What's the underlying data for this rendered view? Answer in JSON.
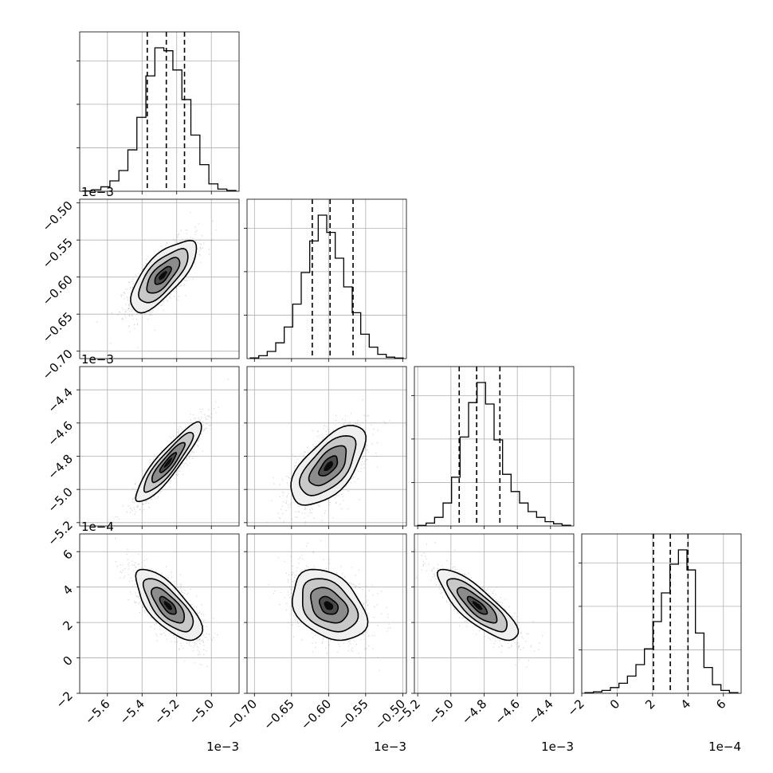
{
  "chart_data": {
    "type": "corner",
    "parameters": [
      {
        "index": 0,
        "limits": [
          -5.76,
          -4.84
        ],
        "ticks": [
          -5.6,
          -5.4,
          -5.2,
          -5.0
        ],
        "tick_labels": [
          "−5.6",
          "−5.4",
          "−5.2",
          "−5.0"
        ],
        "offset": "1e−3",
        "quantiles": [
          -5.37,
          -5.26,
          -5.155
        ],
        "histogram": [
          0.002,
          0.01,
          0.03,
          0.07,
          0.14,
          0.28,
          0.5,
          0.78,
          0.97,
          0.95,
          0.82,
          0.62,
          0.38,
          0.18,
          0.05,
          0.015,
          0.005
        ]
      },
      {
        "index": 1,
        "limits": [
          -0.71,
          -0.495
        ],
        "ticks": [
          -0.7,
          -0.65,
          -0.6,
          -0.55,
          -0.5
        ],
        "tick_labels": [
          "−0.70",
          "−0.65",
          "−0.60",
          "−0.55",
          "−0.50"
        ],
        "offset": "1e−3",
        "quantiles": [
          -0.622,
          -0.598,
          -0.567
        ],
        "histogram": [
          0.005,
          0.02,
          0.05,
          0.11,
          0.22,
          0.38,
          0.6,
          0.82,
          1.0,
          0.88,
          0.7,
          0.5,
          0.32,
          0.17,
          0.08,
          0.03,
          0.01,
          0.004
        ]
      },
      {
        "index": 2,
        "limits": [
          -5.22,
          -4.26
        ],
        "ticks": [
          -5.2,
          -5.0,
          -4.8,
          -4.6,
          -4.4
        ],
        "tick_labels": [
          "−5.2",
          "−5.0",
          "−4.8",
          "−4.6",
          "−4.4"
        ],
        "offset": "1e−3",
        "quantiles": [
          -4.95,
          -4.845,
          -4.705
        ],
        "histogram": [
          0.004,
          0.02,
          0.06,
          0.16,
          0.34,
          0.62,
          0.86,
          1.0,
          0.85,
          0.6,
          0.36,
          0.24,
          0.16,
          0.1,
          0.06,
          0.03,
          0.015,
          0.005
        ]
      },
      {
        "index": 3,
        "limits": [
          -2.0,
          7.0
        ],
        "ticks": [
          -2,
          0,
          2,
          4,
          6
        ],
        "tick_labels": [
          "−2",
          "0",
          "2",
          "4",
          "6"
        ],
        "offset": "1e−4",
        "quantiles": [
          2.05,
          3.0,
          4.0
        ],
        "histogram": [
          0.005,
          0.01,
          0.02,
          0.04,
          0.07,
          0.12,
          0.2,
          0.31,
          0.5,
          0.7,
          0.9,
          1.0,
          0.86,
          0.42,
          0.18,
          0.06,
          0.02,
          0.005
        ]
      }
    ],
    "pairs": [
      {
        "col": 0,
        "row": 1,
        "mean": [
          -5.28,
          -0.598
        ],
        "sd": [
          0.095,
          0.024
        ],
        "rho": 0.72
      },
      {
        "col": 0,
        "row": 2,
        "mean": [
          -5.25,
          -4.84
        ],
        "sd": [
          0.095,
          0.12
        ],
        "rho": 0.9
      },
      {
        "col": 1,
        "row": 2,
        "mean": [
          -0.6,
          -4.86
        ],
        "sd": [
          0.025,
          0.12
        ],
        "rho": 0.62
      },
      {
        "col": 0,
        "row": 3,
        "mean": [
          -5.25,
          2.95
        ],
        "sd": [
          0.095,
          1.0
        ],
        "rho": -0.72
      },
      {
        "col": 1,
        "row": 3,
        "mean": [
          -0.6,
          2.95
        ],
        "sd": [
          0.025,
          1.0
        ],
        "rho": -0.35
      },
      {
        "col": 2,
        "row": 3,
        "mean": [
          -4.84,
          2.95
        ],
        "sd": [
          0.12,
          1.0
        ],
        "rho": -0.82
      }
    ],
    "contour_levels_sigma": [
      0.5,
      1.0,
      1.5,
      2.0
    ],
    "grid": true,
    "tick_rotation_deg": 45
  }
}
